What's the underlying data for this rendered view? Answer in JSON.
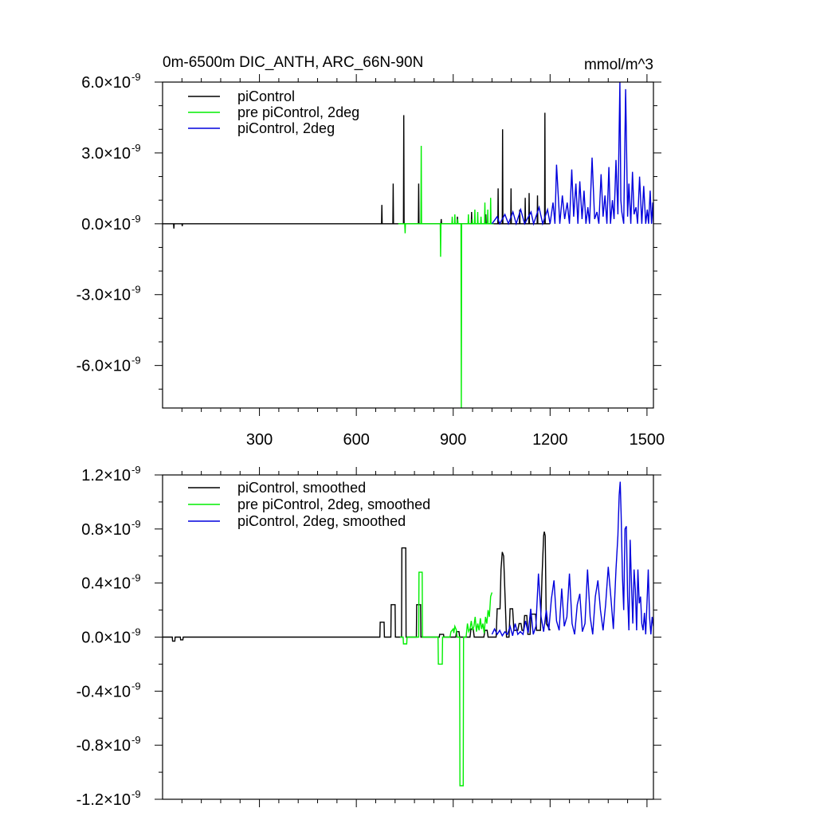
{
  "chart_data": [
    {
      "type": "line",
      "title": "0m-6500m DIC_ANTH, ARC_66N-90N",
      "units": "mmol/m^3",
      "xlim": [
        0,
        1520
      ],
      "ylim": [
        -7.8,
        6.0
      ],
      "y_scale_label": "×10",
      "y_scale_exp": "-9",
      "xticks": [
        300,
        600,
        900,
        1200,
        1500
      ],
      "xtick_labels": [
        "300",
        "600",
        "900",
        "1200",
        "1500"
      ],
      "yticks": [
        6.0,
        3.0,
        0.0,
        -3.0,
        -6.0
      ],
      "ytick_labels": [
        "6.0",
        "3.0",
        "0.0",
        "-3.0",
        "-6.0"
      ],
      "legend": [
        "piControl",
        "pre piControl, 2deg",
        "piControl, 2deg"
      ],
      "legend_position": "top-left",
      "series": [
        {
          "name": "piControl",
          "color": "#000000",
          "x": [
            0,
            34,
            35,
            36,
            60,
            61,
            62,
            678,
            679,
            680,
            713,
            714,
            715,
            746,
            747,
            748,
            792,
            793,
            794,
            862,
            863,
            864,
            912,
            913,
            914,
            956,
            957,
            958,
            1000,
            1001,
            1002,
            1038,
            1039,
            1040,
            1052,
            1053,
            1054,
            1078,
            1079,
            1080,
            1105,
            1106,
            1107,
            1122,
            1123,
            1124,
            1134,
            1135,
            1136,
            1160,
            1161,
            1162,
            1183,
            1184,
            1185,
            1200
          ],
          "values": [
            0,
            0,
            -0.2,
            0,
            0,
            -0.1,
            0,
            0,
            0.8,
            0,
            0,
            1.7,
            0,
            0,
            4.6,
            0,
            0,
            1.7,
            0,
            0,
            0.2,
            0,
            0,
            0.3,
            0,
            0,
            0.5,
            0,
            0,
            0.4,
            0,
            0,
            1.5,
            0,
            0,
            4.0,
            0,
            0,
            1.5,
            0,
            0,
            0.6,
            0,
            0,
            1.1,
            0,
            0,
            1.3,
            0,
            0,
            1.2,
            0,
            0,
            4.7,
            0,
            0
          ]
        },
        {
          "name": "pre piControl, 2deg",
          "color": "#00ee00",
          "x": [
            730,
            750,
            751,
            752,
            800,
            801,
            802,
            860,
            861,
            862,
            896,
            897,
            898,
            904,
            905,
            906,
            913,
            914,
            915,
            924,
            925,
            926,
            946,
            947,
            948,
            958,
            959,
            960,
            966,
            967,
            968,
            975,
            976,
            977,
            985,
            986,
            987,
            997,
            998,
            999,
            1006,
            1007,
            1008,
            1015,
            1016,
            1017,
            1025
          ],
          "values": [
            0,
            0,
            -0.4,
            0,
            0,
            3.3,
            0,
            0,
            -1.4,
            0,
            0,
            0.3,
            0,
            0,
            0.4,
            0,
            0,
            0.2,
            0,
            0,
            -7.8,
            0,
            0,
            0.4,
            0,
            0,
            0.2,
            0,
            0,
            0.6,
            0,
            0,
            0.5,
            0,
            0,
            0.3,
            0,
            0,
            0.9,
            0,
            0,
            0.6,
            0,
            0,
            1.1,
            0,
            0
          ]
        },
        {
          "name": "piControl, 2deg",
          "color": "#0000dd",
          "x": [
            1020,
            1036,
            1044,
            1060,
            1071,
            1085,
            1095,
            1109,
            1121,
            1141,
            1149,
            1166,
            1177,
            1192,
            1200,
            1209,
            1215,
            1220,
            1230,
            1238,
            1245,
            1253,
            1260,
            1267,
            1273,
            1280,
            1286,
            1292,
            1299,
            1305,
            1311,
            1317,
            1322,
            1330,
            1338,
            1345,
            1351,
            1358,
            1364,
            1370,
            1376,
            1382,
            1387,
            1393,
            1398,
            1404,
            1410,
            1416,
            1419,
            1422,
            1428,
            1434,
            1440,
            1444,
            1450,
            1455,
            1460,
            1466,
            1471,
            1477,
            1484,
            1490,
            1496,
            1501,
            1505,
            1510,
            1514,
            1518,
            1520
          ],
          "values": [
            0,
            0.3,
            0,
            0.4,
            0,
            0.5,
            0,
            0.6,
            0,
            0.5,
            0,
            0.7,
            0,
            0.6,
            0,
            0.9,
            0,
            2.5,
            0,
            1.2,
            0.2,
            0.9,
            0,
            2.3,
            0.3,
            1.7,
            0,
            1.8,
            0.2,
            1.4,
            0,
            0.7,
            0,
            2.8,
            0.2,
            0.5,
            0,
            2.1,
            0.3,
            1.2,
            0,
            2.4,
            0,
            1.0,
            0.2,
            2.7,
            0.4,
            6.0,
            1.0,
            0.5,
            0,
            5.7,
            0.3,
            1.7,
            0,
            2.2,
            0.4,
            0.7,
            0,
            2.0,
            0,
            1.6,
            0,
            0.6,
            0,
            1.4,
            0,
            0.9,
            0
          ]
        }
      ]
    },
    {
      "type": "line",
      "title": "",
      "xlim": [
        0,
        1520
      ],
      "ylim": [
        -1.2,
        1.2
      ],
      "y_scale_label": "×10",
      "y_scale_exp": "-9",
      "xticks": [
        300,
        600,
        900,
        1200,
        1500
      ],
      "yticks": [
        1.2,
        0.8,
        0.4,
        0.0,
        -0.4,
        -0.8,
        -1.2
      ],
      "ytick_labels": [
        "1.2",
        "0.8",
        "0.4",
        "0.0",
        "-0.4",
        "-0.8",
        "-1.2"
      ],
      "legend": [
        "piControl, smoothed",
        "pre piControl, 2deg, smoothed",
        "piControl, 2deg, smoothed"
      ],
      "legend_position": "top-left",
      "series": [
        {
          "name": "piControl, smoothed",
          "color": "#000000",
          "x": [
            0,
            30,
            31,
            38,
            39,
            55,
            56,
            63,
            64,
            673,
            674,
            686,
            687,
            707,
            708,
            720,
            721,
            740,
            741,
            753,
            754,
            786,
            787,
            799,
            800,
            857,
            858,
            870,
            871,
            908,
            910,
            918,
            920,
            952,
            955,
            962,
            965,
            995,
            998,
            1005,
            1008,
            1033,
            1036,
            1045,
            1048,
            1052,
            1056,
            1062,
            1065,
            1073,
            1076,
            1084,
            1088,
            1100,
            1104,
            1110,
            1113,
            1118,
            1121,
            1128,
            1131,
            1138,
            1141,
            1155,
            1158,
            1170,
            1175,
            1180,
            1182,
            1185,
            1188,
            1200
          ],
          "values": [
            0,
            0,
            -0.03,
            -0.03,
            0,
            0,
            -0.02,
            -0.02,
            0,
            0,
            0.11,
            0.11,
            0,
            0,
            0.24,
            0.24,
            0,
            0,
            0.66,
            0.66,
            0,
            0,
            0.24,
            0.24,
            0,
            0,
            0.02,
            0.02,
            0,
            0,
            0.04,
            0.04,
            0,
            0,
            0.06,
            0.06,
            0,
            0,
            0.05,
            0.05,
            0,
            0,
            0.21,
            0.21,
            0.5,
            0.63,
            0.6,
            0.2,
            0,
            0,
            0.21,
            0.21,
            0.05,
            0.05,
            0.1,
            0.1,
            0.05,
            0.05,
            0.16,
            0.16,
            0.02,
            0.02,
            0.17,
            0.17,
            0.05,
            0.05,
            0.45,
            0.75,
            0.78,
            0.75,
            0.1,
            0.05
          ]
        },
        {
          "name": "pre piControl, 2deg, smoothed",
          "color": "#00ee00",
          "x": [
            735,
            745,
            746,
            756,
            757,
            793,
            794,
            804,
            805,
            853,
            854,
            866,
            867,
            890,
            893,
            900,
            902,
            905,
            910,
            912,
            920,
            921,
            931,
            932,
            940,
            944,
            948,
            952,
            956,
            960,
            964,
            968,
            972,
            976,
            980,
            984,
            988,
            992,
            996,
            1000,
            1004,
            1008,
            1012,
            1016,
            1020
          ],
          "values": [
            0,
            0,
            -0.05,
            -0.05,
            0,
            0,
            0.48,
            0.48,
            0,
            0,
            -0.2,
            -0.2,
            0,
            0,
            0.04,
            0.06,
            0.03,
            0.08,
            0.05,
            0,
            0,
            -1.1,
            -1.1,
            0,
            0,
            0.1,
            0.04,
            0.06,
            0.12,
            0.05,
            0.08,
            0.15,
            0.04,
            0.1,
            0.05,
            0.14,
            0.06,
            0.1,
            0.03,
            0.15,
            0.1,
            0.2,
            0.15,
            0.3,
            0.33
          ]
        },
        {
          "name": "piControl, 2deg, smoothed",
          "color": "#0000dd",
          "x": [
            1020,
            1028,
            1036,
            1044,
            1052,
            1060,
            1068,
            1076,
            1084,
            1092,
            1100,
            1108,
            1116,
            1124,
            1132,
            1140,
            1148,
            1156,
            1164,
            1172,
            1180,
            1188,
            1196,
            1204,
            1212,
            1220,
            1228,
            1236,
            1244,
            1252,
            1260,
            1268,
            1276,
            1284,
            1292,
            1300,
            1308,
            1316,
            1324,
            1332,
            1340,
            1348,
            1356,
            1364,
            1372,
            1380,
            1388,
            1396,
            1404,
            1410,
            1414,
            1417,
            1420,
            1424,
            1428,
            1432,
            1436,
            1440,
            1444,
            1448,
            1452,
            1456,
            1460,
            1464,
            1468,
            1472,
            1476,
            1480,
            1484,
            1488,
            1492,
            1496,
            1500,
            1504,
            1508,
            1512,
            1516,
            1520
          ],
          "values": [
            0.02,
            0.06,
            0.02,
            0.05,
            0.01,
            0.04,
            0.02,
            0.08,
            0.01,
            0.1,
            0.02,
            0.04,
            0.02,
            0.12,
            0.03,
            0.21,
            0.02,
            0.08,
            0.47,
            0.15,
            0.04,
            0.2,
            0.05,
            0.28,
            0.42,
            0.12,
            0.05,
            0.36,
            0.08,
            0.15,
            0.47,
            0.1,
            0.02,
            0.24,
            0.32,
            0.04,
            0.1,
            0.5,
            0.15,
            0.02,
            0.3,
            0.42,
            0.2,
            0.05,
            0.24,
            0.52,
            0.3,
            0.06,
            0.5,
            0.75,
            1.05,
            1.15,
            0.9,
            0.45,
            0.2,
            0.8,
            0.82,
            0.3,
            0.05,
            0.72,
            0.4,
            0.1,
            0.5,
            0.35,
            0.05,
            0.5,
            0.25,
            0.3,
            0.1,
            0.05,
            0.18,
            0.02,
            0.25,
            0.5,
            0.15,
            0.02,
            0.15,
            0.08
          ]
        }
      ]
    }
  ]
}
